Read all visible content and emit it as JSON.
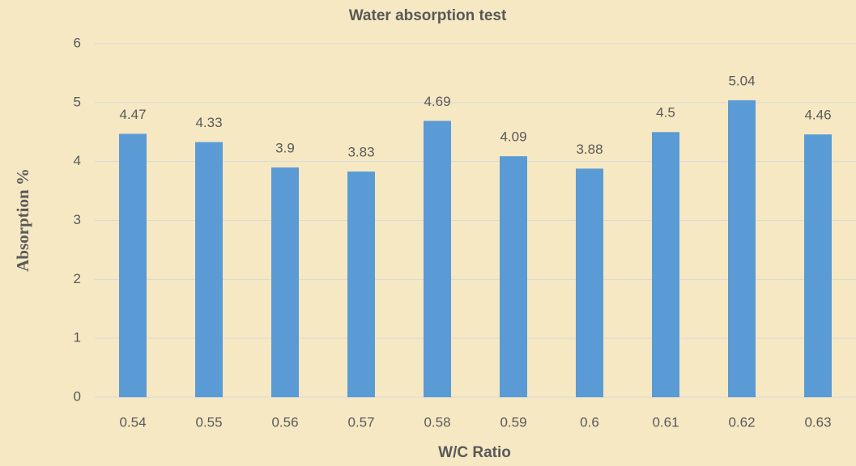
{
  "chart_data": {
    "type": "bar",
    "title": "Water absorption test",
    "x_label": "W/C Ratio",
    "y_label": "Absorption %",
    "categories": [
      "0.54",
      "0.55",
      "0.56",
      "0.57",
      "0.58",
      "0.59",
      "0.6",
      "0.61",
      "0.62",
      "0.63"
    ],
    "values": [
      4.47,
      4.33,
      3.9,
      3.83,
      4.69,
      4.09,
      3.88,
      4.5,
      5.04,
      4.46
    ],
    "color": "#5b9bd5",
    "ylim": [
      0,
      6
    ],
    "yticks": [
      0,
      1,
      2,
      3,
      4,
      5,
      6
    ],
    "grid": true
  }
}
